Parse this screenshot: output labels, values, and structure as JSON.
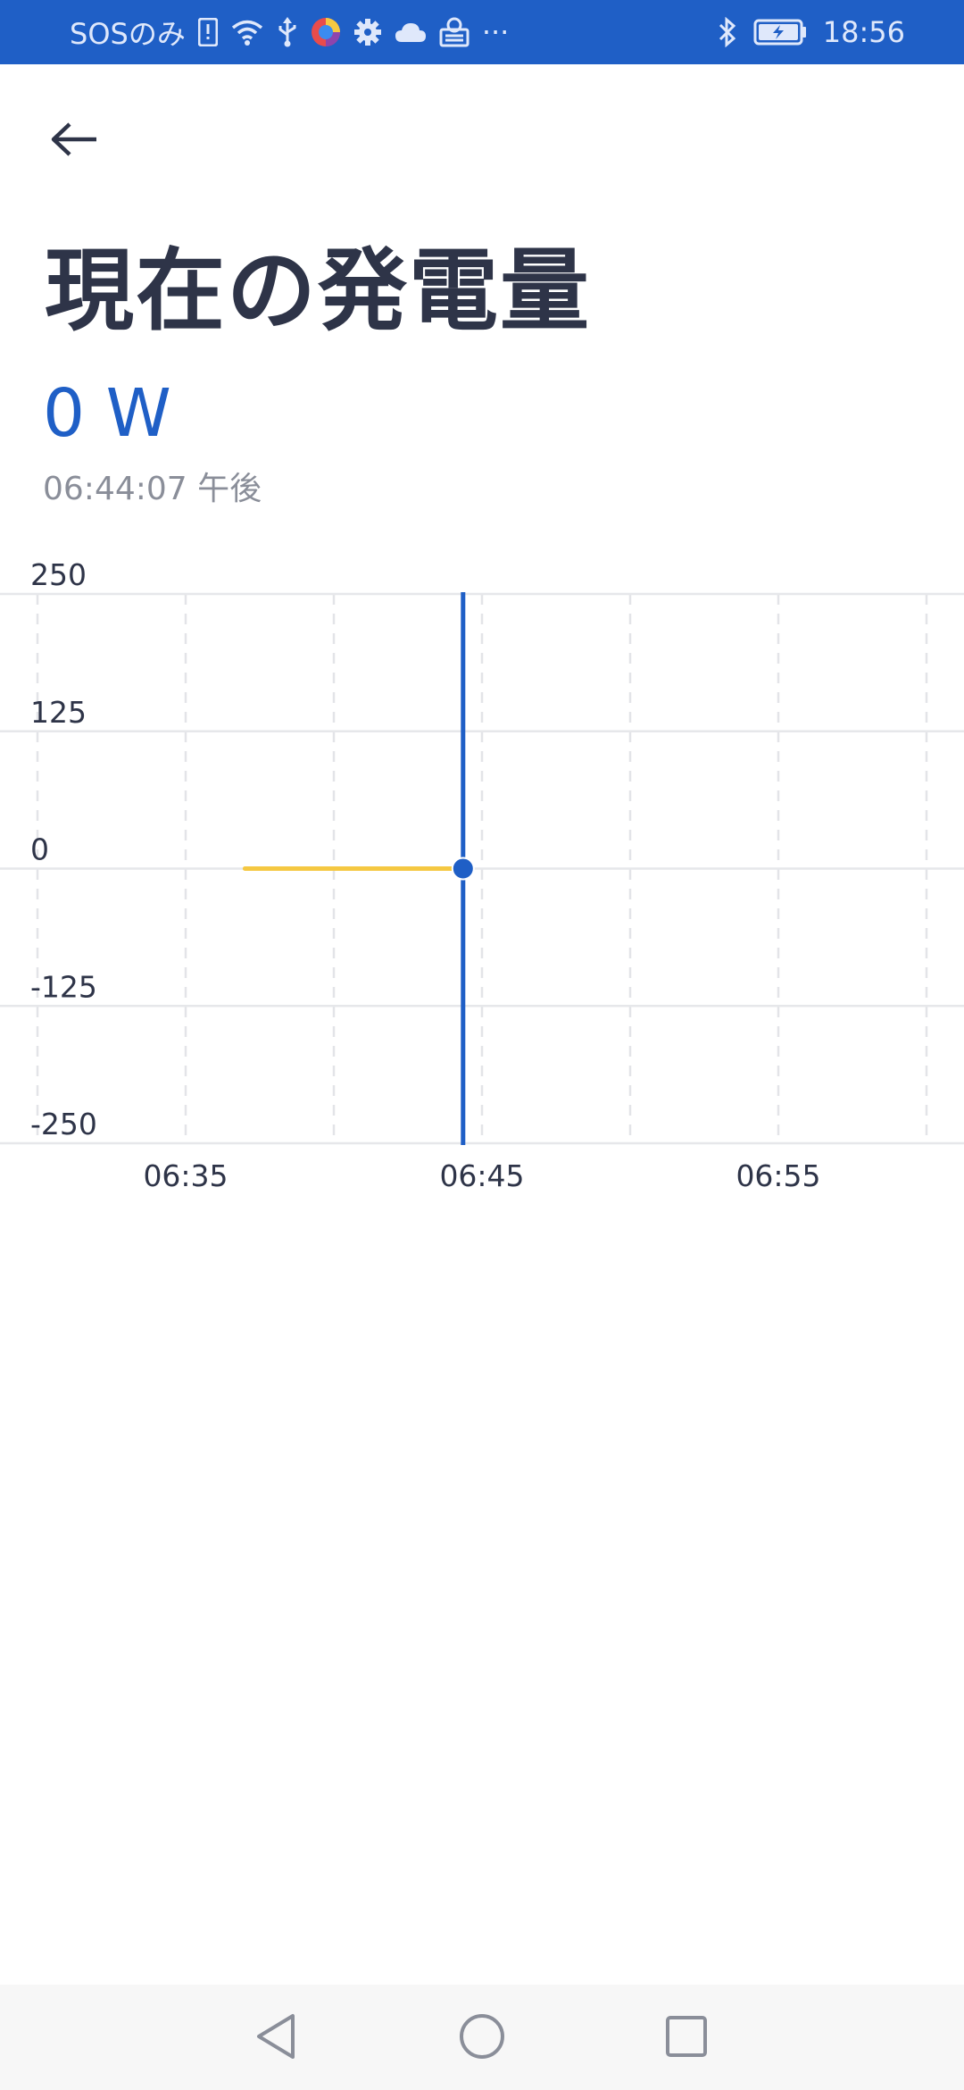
{
  "status_bar": {
    "carrier": "SOSのみ",
    "more": "···",
    "time": "18:56",
    "background": "#1f5fc6",
    "icons_left": [
      "sim-alert-icon",
      "wifi-icon",
      "usb-icon",
      "app-icon",
      "settings-icon",
      "cloud-icon",
      "vpn-icon"
    ],
    "icons_right": [
      "bluetooth-icon",
      "battery-charging-icon"
    ]
  },
  "header": {
    "back_icon": "arrow-left-icon",
    "title": "現在の発電量"
  },
  "current": {
    "value": "0 W",
    "timestamp": "06:44:07 午後",
    "accent": "#1f5fc6"
  },
  "chart_data": {
    "type": "line",
    "ylim": [
      -250,
      250
    ],
    "yticks": [
      "250",
      "125",
      "0",
      "-125",
      "-250"
    ],
    "xticks": [
      "06:35",
      "06:45",
      "06:55"
    ],
    "series": [
      {
        "color": "#f5c842",
        "points": [
          [
            "06:37",
            0
          ],
          [
            "06:44",
            0
          ]
        ]
      }
    ],
    "cursor": {
      "x": "06:44",
      "y": 0,
      "color": "#1f5fc6"
    },
    "grid": true
  },
  "nav_bar": {
    "buttons": [
      "back-triangle-icon",
      "home-circle-icon",
      "recents-square-icon"
    ]
  }
}
